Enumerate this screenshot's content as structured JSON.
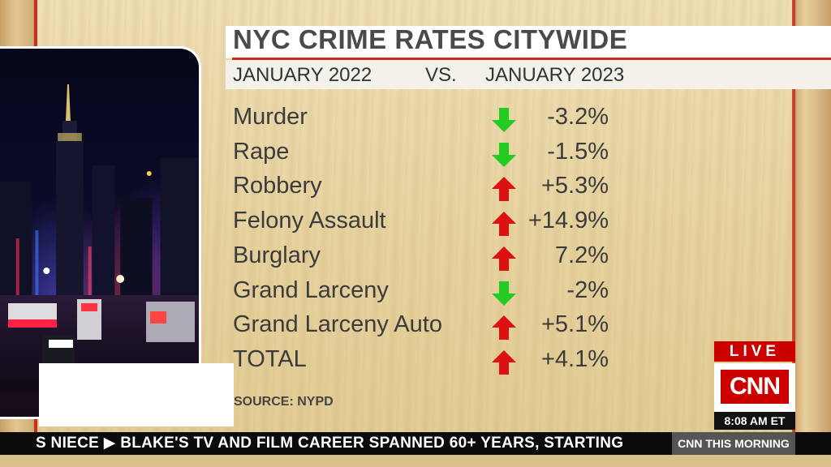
{
  "graphic": {
    "title": "NYC CRIME RATES CITYWIDE",
    "compare_left": "JANUARY 2022",
    "compare_vs": "VS.",
    "compare_right": "JANUARY 2023",
    "rows": [
      {
        "label": "Murder",
        "change": "-3.2%",
        "direction": "down"
      },
      {
        "label": "Rape",
        "change": "-1.5%",
        "direction": "down"
      },
      {
        "label": "Robbery",
        "change": "+5.3%",
        "direction": "up"
      },
      {
        "label": "Felony Assault",
        "change": "+14.9%",
        "direction": "up"
      },
      {
        "label": "Burglary",
        "change": "7.2%",
        "direction": "up"
      },
      {
        "label": "Grand Larceny",
        "change": "-2%",
        "direction": "down"
      },
      {
        "label": "Grand Larceny Auto",
        "change": "+5.1%",
        "direction": "up"
      },
      {
        "label": "TOTAL",
        "change": "+4.1%",
        "direction": "up"
      }
    ],
    "source": "SOURCE: NYPD",
    "colors": {
      "down": "#22cc22",
      "up": "#dd1111",
      "accent": "#c7301f"
    }
  },
  "bug": {
    "live": "LIVE",
    "logo": "CNN",
    "time": "8:08 AM ET"
  },
  "ticker": {
    "text": "S NIECE  ▶  BLAKE'S TV AND FILM CAREER SPANNED 60+ YEARS, STARTING",
    "show": "CNN THIS MORNING"
  }
}
